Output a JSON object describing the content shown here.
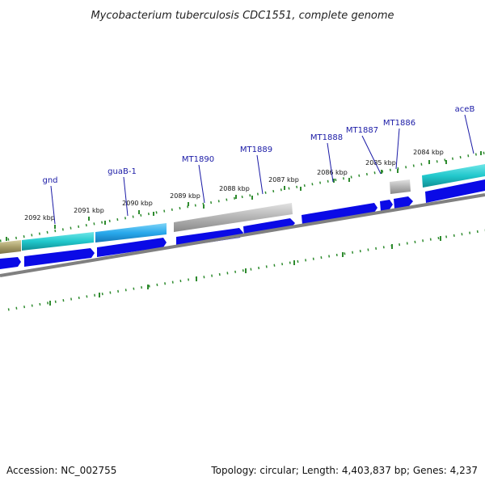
{
  "title": "Mycobacterium tuberculosis CDC1551, complete genome",
  "footer": {
    "accession": "Accession: NC_002755",
    "summary": "Topology: circular; Length: 4,403,837 bp; Genes: 4,237"
  },
  "kbp_labels": [
    "2092 kbp",
    "2091 kbp",
    "2090 kbp",
    "2089 kbp",
    "2088 kbp",
    "2087 kbp",
    "2086 kbp",
    "2085 kbp",
    "2084 kbp"
  ],
  "genes": [
    {
      "name": "gnd"
    },
    {
      "name": "guaB-1"
    },
    {
      "name": "MT1890"
    },
    {
      "name": "MT1889"
    },
    {
      "name": "MT1888"
    },
    {
      "name": "MT1887"
    },
    {
      "name": "MT1886"
    },
    {
      "name": "aceB"
    }
  ],
  "colors": {
    "arrow_blue": "#0a0ae6",
    "gene_cyan": "#22c8cc",
    "gene_sky": "#29a9ec",
    "gene_gray": "#a8a8a8",
    "gene_olive": "#a89e6a",
    "tick_green": "#2e8b2e",
    "label_blue": "#1a1aa6",
    "backbone_gray": "#808080"
  }
}
